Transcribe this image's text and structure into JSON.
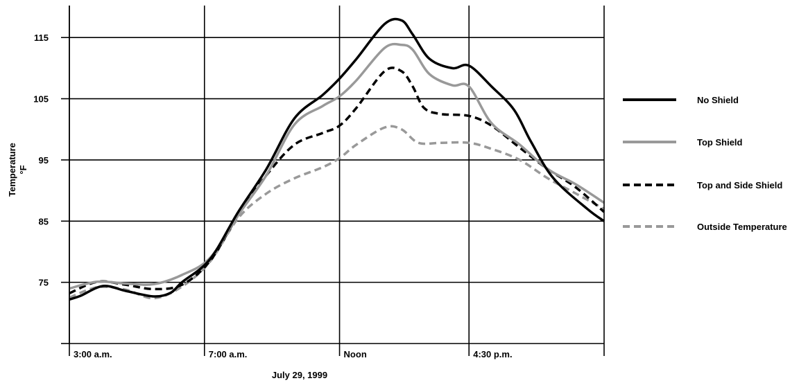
{
  "chart_data": {
    "type": "line",
    "title": "",
    "xlabel": "July 29, 1999",
    "ylabel": "Temperature",
    "yunit": "°F",
    "ylim": [
      65,
      120
    ],
    "xlim": [
      3,
      12.5
    ],
    "yticks": [
      75,
      85,
      95,
      105,
      115
    ],
    "xticks": [
      {
        "value": 3,
        "label": "3:00 a.m."
      },
      {
        "value": 5.4,
        "label": "7:00 a.m."
      },
      {
        "value": 7.8,
        "label": "Noon"
      },
      {
        "value": 10.1,
        "label": "4:30 p.m."
      }
    ],
    "grid": true,
    "legend_position": "right",
    "series": [
      {
        "name": "No Shield",
        "color": "#000000",
        "dash": "solid",
        "points": [
          [
            3.0,
            72.2
          ],
          [
            3.2,
            72.8
          ],
          [
            3.6,
            74.4
          ],
          [
            4.0,
            73.6
          ],
          [
            4.5,
            72.7
          ],
          [
            4.8,
            73.3
          ],
          [
            5.0,
            75.0
          ],
          [
            5.5,
            78.8
          ],
          [
            6.0,
            86.5
          ],
          [
            6.5,
            93.5
          ],
          [
            7.0,
            101.8
          ],
          [
            7.5,
            105.6
          ],
          [
            7.8,
            108.3
          ],
          [
            8.1,
            111.5
          ],
          [
            8.6,
            117.2
          ],
          [
            8.9,
            117.8
          ],
          [
            9.1,
            115.5
          ],
          [
            9.4,
            111.5
          ],
          [
            9.8,
            110.0
          ],
          [
            10.1,
            110.4
          ],
          [
            10.5,
            107.0
          ],
          [
            10.9,
            103.2
          ],
          [
            11.2,
            98.0
          ],
          [
            11.6,
            92.0
          ],
          [
            12.2,
            87.0
          ],
          [
            12.5,
            85.0
          ]
        ]
      },
      {
        "name": "Top Shield",
        "color": "#999999",
        "dash": "solid",
        "points": [
          [
            3.0,
            74.0
          ],
          [
            3.5,
            75.1
          ],
          [
            4.0,
            74.8
          ],
          [
            4.5,
            74.7
          ],
          [
            5.0,
            76.2
          ],
          [
            5.5,
            79.0
          ],
          [
            6.0,
            86.0
          ],
          [
            6.5,
            92.5
          ],
          [
            7.0,
            100.8
          ],
          [
            7.5,
            103.8
          ],
          [
            7.8,
            105.4
          ],
          [
            8.1,
            108.0
          ],
          [
            8.6,
            113.3
          ],
          [
            8.9,
            113.8
          ],
          [
            9.1,
            113.0
          ],
          [
            9.4,
            109.0
          ],
          [
            9.8,
            107.2
          ],
          [
            10.1,
            107.0
          ],
          [
            10.5,
            101.0
          ],
          [
            11.0,
            97.5
          ],
          [
            11.5,
            93.5
          ],
          [
            12.0,
            91.0
          ],
          [
            12.5,
            88.0
          ]
        ]
      },
      {
        "name": "Top and Side Shield",
        "color": "#000000",
        "dash": "dashed",
        "points": [
          [
            3.0,
            73.2
          ],
          [
            3.5,
            75.1
          ],
          [
            4.0,
            74.6
          ],
          [
            4.5,
            73.9
          ],
          [
            5.0,
            74.6
          ],
          [
            5.5,
            78.5
          ],
          [
            6.0,
            86.0
          ],
          [
            6.5,
            92.5
          ],
          [
            7.0,
            97.5
          ],
          [
            7.5,
            99.4
          ],
          [
            7.8,
            100.6
          ],
          [
            8.1,
            103.5
          ],
          [
            8.6,
            109.5
          ],
          [
            8.9,
            109.5
          ],
          [
            9.1,
            107.0
          ],
          [
            9.3,
            103.5
          ],
          [
            9.6,
            102.5
          ],
          [
            10.1,
            102.2
          ],
          [
            10.5,
            100.6
          ],
          [
            11.0,
            97.0
          ],
          [
            11.5,
            93.5
          ],
          [
            12.0,
            90.5
          ],
          [
            12.5,
            86.5
          ]
        ]
      },
      {
        "name": "Outside Temperature",
        "color": "#999999",
        "dash": "dashed",
        "points": [
          [
            3.0,
            72.5
          ],
          [
            3.5,
            74.2
          ],
          [
            4.0,
            73.8
          ],
          [
            4.5,
            72.4
          ],
          [
            5.0,
            74.3
          ],
          [
            5.5,
            78.4
          ],
          [
            6.0,
            85.5
          ],
          [
            6.5,
            89.5
          ],
          [
            7.0,
            92.0
          ],
          [
            7.5,
            93.8
          ],
          [
            7.8,
            95.3
          ],
          [
            8.1,
            97.5
          ],
          [
            8.6,
            100.3
          ],
          [
            8.9,
            100.0
          ],
          [
            9.2,
            97.8
          ],
          [
            9.6,
            97.8
          ],
          [
            10.1,
            97.8
          ],
          [
            10.5,
            96.8
          ],
          [
            11.0,
            95.0
          ],
          [
            11.5,
            92.0
          ],
          [
            12.0,
            89.5
          ],
          [
            12.5,
            87.0
          ]
        ]
      }
    ]
  }
}
